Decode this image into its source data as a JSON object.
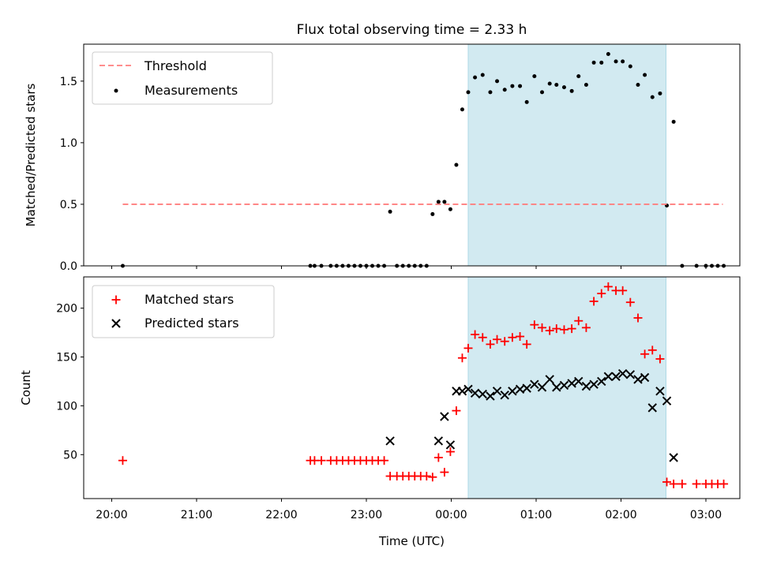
{
  "chart_data": {
    "title": "Flux total observing time = 2.33 h",
    "xlabel": "Time (UTC)",
    "x_axis": {
      "unit": "hours_after_20:00",
      "range": [
        -0.33,
        7.4
      ],
      "ticks": [
        {
          "value": 0,
          "label": "20:00"
        },
        {
          "value": 1,
          "label": "21:00"
        },
        {
          "value": 2,
          "label": "22:00"
        },
        {
          "value": 3,
          "label": "23:00"
        },
        {
          "value": 4,
          "label": "00:00"
        },
        {
          "value": 5,
          "label": "01:00"
        },
        {
          "value": 6,
          "label": "02:00"
        },
        {
          "value": 7,
          "label": "03:00"
        }
      ]
    },
    "observing_window": [
      4.2,
      6.53
    ],
    "window_color": "#add8e6",
    "top": {
      "type": "scatter",
      "ylabel": "Matched/Predicted stars",
      "ylim": [
        0,
        1.8
      ],
      "yticks": [
        {
          "value": 0,
          "label": "0.0"
        },
        {
          "value": 0.5,
          "label": "0.5"
        },
        {
          "value": 1.0,
          "label": "1.0"
        },
        {
          "value": 1.5,
          "label": "1.5"
        }
      ],
      "threshold": {
        "name": "Threshold",
        "value": 0.5,
        "x_range": [
          0.13,
          7.2
        ],
        "color": "#ff7f7f"
      },
      "measurements": {
        "name": "Measurements",
        "color": "#000000",
        "x": [
          0.13,
          2.34,
          2.39,
          2.47,
          2.58,
          2.65,
          2.72,
          2.79,
          2.86,
          2.93,
          3.0,
          3.07,
          3.14,
          3.21,
          3.28,
          3.36,
          3.43,
          3.5,
          3.57,
          3.64,
          3.71,
          3.78,
          3.85,
          3.92,
          3.99,
          4.06,
          4.13,
          4.2,
          4.28,
          4.37,
          4.46,
          4.54,
          4.63,
          4.72,
          4.81,
          4.89,
          4.98,
          5.07,
          5.16,
          5.24,
          5.33,
          5.42,
          5.5,
          5.59,
          5.68,
          5.77,
          5.85,
          5.94,
          6.02,
          6.11,
          6.2,
          6.28,
          6.37,
          6.46,
          6.54,
          6.62,
          6.72,
          6.89,
          7.0,
          7.07,
          7.14,
          7.21
        ],
        "y": [
          0.0,
          0.0,
          0.0,
          0.0,
          0.0,
          0.0,
          0.0,
          0.0,
          0.0,
          0.0,
          0.0,
          0.0,
          0.0,
          0.0,
          0.44,
          0.0,
          0.0,
          0.0,
          0.0,
          0.0,
          0.0,
          0.42,
          0.52,
          0.52,
          0.46,
          0.82,
          1.27,
          1.41,
          1.53,
          1.55,
          1.41,
          1.5,
          1.43,
          1.46,
          1.46,
          1.33,
          1.54,
          1.41,
          1.48,
          1.47,
          1.45,
          1.42,
          1.54,
          1.47,
          1.65,
          1.65,
          1.72,
          1.66,
          1.66,
          1.62,
          1.47,
          1.55,
          1.37,
          1.4,
          0.49,
          1.17,
          0.0,
          0.0,
          0.0,
          0.0,
          0.0,
          0.0
        ]
      }
    },
    "bottom": {
      "type": "scatter",
      "ylabel": "Count",
      "ylim": [
        5,
        232
      ],
      "yticks": [
        {
          "value": 50,
          "label": "50"
        },
        {
          "value": 100,
          "label": "100"
        },
        {
          "value": 150,
          "label": "150"
        },
        {
          "value": 200,
          "label": "200"
        }
      ],
      "series": [
        {
          "name": "Matched stars",
          "marker": "plus",
          "color": "#ff0000",
          "x": [
            0.13,
            2.34,
            2.39,
            2.47,
            2.58,
            2.65,
            2.72,
            2.79,
            2.86,
            2.93,
            3.0,
            3.07,
            3.14,
            3.21,
            3.28,
            3.36,
            3.43,
            3.5,
            3.57,
            3.64,
            3.71,
            3.78,
            3.85,
            3.92,
            3.99,
            4.06,
            4.13,
            4.2,
            4.28,
            4.37,
            4.46,
            4.54,
            4.63,
            4.72,
            4.81,
            4.89,
            4.98,
            5.07,
            5.16,
            5.24,
            5.33,
            5.42,
            5.5,
            5.59,
            5.68,
            5.77,
            5.85,
            5.94,
            6.02,
            6.11,
            6.2,
            6.28,
            6.37,
            6.46,
            6.54,
            6.62,
            6.72,
            6.89,
            7.0,
            7.07,
            7.14,
            7.21
          ],
          "y": [
            44,
            44,
            44,
            44,
            44,
            44,
            44,
            44,
            44,
            44,
            44,
            44,
            44,
            44,
            28,
            28,
            28,
            28,
            28,
            28,
            28,
            27,
            47,
            32,
            53,
            95,
            149,
            159,
            173,
            170,
            163,
            168,
            166,
            170,
            171,
            163,
            183,
            180,
            177,
            179,
            178,
            179,
            187,
            180,
            207,
            215,
            222,
            218,
            218,
            206,
            190,
            153,
            157,
            148,
            22,
            20,
            20,
            20,
            20,
            20,
            20,
            20
          ]
        },
        {
          "name": "Predicted stars",
          "marker": "x",
          "color": "#000000",
          "x": [
            3.28,
            3.85,
            3.92,
            3.99,
            4.06,
            4.13,
            4.2,
            4.28,
            4.37,
            4.46,
            4.54,
            4.63,
            4.72,
            4.81,
            4.89,
            4.98,
            5.07,
            5.16,
            5.24,
            5.33,
            5.42,
            5.5,
            5.59,
            5.68,
            5.77,
            5.85,
            5.94,
            6.02,
            6.11,
            6.2,
            6.28,
            6.37,
            6.46,
            6.54,
            6.62
          ],
          "y": [
            64,
            64,
            89,
            60,
            115,
            115,
            117,
            113,
            112,
            110,
            115,
            111,
            115,
            117,
            118,
            122,
            119,
            127,
            119,
            121,
            123,
            125,
            120,
            122,
            125,
            130,
            130,
            133,
            132,
            127,
            129,
            98,
            115,
            105,
            47
          ]
        }
      ]
    },
    "legend_top_position": "upper-left",
    "legend_bottom_position": "upper-left"
  }
}
